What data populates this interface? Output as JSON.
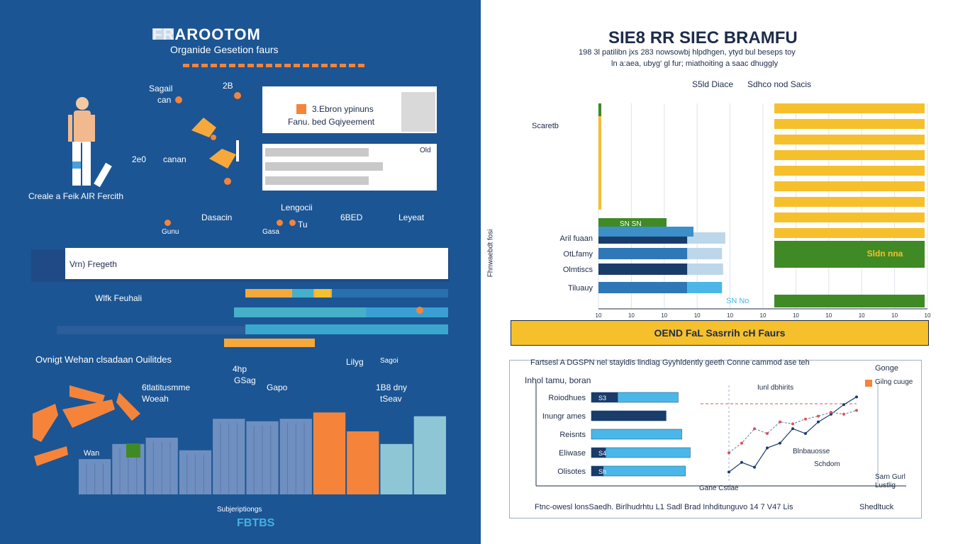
{
  "colors": {
    "left_bg": "#1b5594",
    "orange": "#f5843a",
    "yellow": "#f6c02c",
    "green": "#3f8a25",
    "light_blue": "#4bb7e8",
    "navy": "#1a3c6b",
    "teal": "#46b0c8",
    "grey_blue": "#6f8fc0"
  },
  "left": {
    "title": "FRAROOTOM",
    "subtitle": "Organide Gesetion faurs",
    "figure_label": "Creale a Feik AIR Fercith",
    "label_top_a": "Sagail",
    "label_top_a2": "can",
    "label_top_b": "2B",
    "label_mid_a": "2e0",
    "label_mid_b": "canan",
    "card1_line1": "3.Ebron ypinuns",
    "card1_line2": "Fanu. bed Gqiyeement",
    "card2_tag": "Old",
    "row_label_a": "Dasacin",
    "row_label_b": "Lengocii",
    "row_label_c": "6BED",
    "row_label_d": "Leyeat",
    "row_small_a": "Gunu",
    "row_small_b": "Gasa",
    "row_small_c": "Tu",
    "banner_text": "Vrn) Fregeth",
    "bar_label": "Wlfk Feuhali",
    "section_title": "Ovnigt Wehan clsadaan Ouilitdes",
    "note_a1": "4hp",
    "note_a2": "GSag",
    "note_b": "Gapo",
    "note_c1": "Lilyg",
    "note_c2": "Sagoi",
    "note_d1": "6tlatitusmme",
    "note_d2": "Woeah",
    "note_e1": "1B8 dny",
    "note_e2": "tSeav",
    "bottom_small": "Subjeriptiongs",
    "bottom_logo": "FBTBS",
    "fig_tag": "Wan"
  },
  "right": {
    "title": "SIE8 RR SIEC BRAMFU",
    "sub1": "198 3l patilibn jxs 283 nowsowbj hlpdhgen, ytyd bul beseps toy",
    "sub2": "ln a:aea, ubyg' gl fur; miathoiting a saac dhuggly",
    "legend_a": "S5ld Diace",
    "legend_b": "Sdhco nod Sacis",
    "y_label_top": "Scaretb",
    "y_axis_title": "Fhnwaebdt fosi",
    "bar_label_a": "SN SN",
    "bar_label_b": "Sldn nna",
    "bar_label_c": "SN No",
    "cat_labels": [
      "Aril fuaan",
      "OtLfamy",
      "Olmtiscs",
      "Tiluauy"
    ],
    "x_ticks": [
      "10",
      "10",
      "10",
      "10",
      "10",
      "10",
      "10",
      "10",
      "10",
      "10",
      "10"
    ],
    "banner": "OEND FaL Sasrrih cH Faurs",
    "chart2_title": "Fartsesl  A DGSPN nel stayidis lindiag Gyyhldently geeth  Conne cammod ase teh",
    "chart2_side_tag": "Gonge",
    "chart2_first_label": "Inhol tamu, boran",
    "chart2_cats": [
      "Roiodhues",
      "Inungr ames",
      "Reisnts",
      "Eliwase",
      "Olisotes"
    ],
    "chart2_bar_tags": [
      "S3",
      "",
      "",
      "S4",
      "Sh"
    ],
    "chart2_xlabel": "Ftnc-owesl lonsSaedh. Birlhudrhtu L1 Sadl  Brad Inhditunguvo  14 7  V47  Lis",
    "chart2_xlabel_right": "Shedltuck",
    "chart2_note": "Gane  Cstlae",
    "chart2_annot_a": "Iunl dbhirits",
    "chart2_annot_b": "Blnbauosse",
    "chart2_annot_c": "Schdom",
    "chart2_annot_d": "Gilng cuuge",
    "chart2_annot_e": "Sarn Gurl",
    "chart2_annot_f": "Lustlig"
  },
  "chart_data": [
    {
      "type": "bar",
      "subtype": "vertical",
      "title": "",
      "categories": [
        "b1",
        "b2",
        "b3",
        "b4",
        "b5",
        "b6",
        "b7",
        "b8",
        "b9",
        "b10",
        "b11"
      ],
      "values": [
        28,
        40,
        45,
        35,
        60,
        58,
        60,
        65,
        50,
        40,
        62
      ],
      "colors": [
        "grey_blue",
        "grey_blue",
        "grey_blue",
        "grey_blue",
        "grey_blue",
        "grey_blue",
        "grey_blue",
        "orange",
        "orange",
        "light",
        "light"
      ],
      "ylim": [
        0,
        100
      ]
    },
    {
      "type": "bar",
      "subtype": "horizontal-stacked",
      "title": "SIE8 RR SIEC BRAMFU",
      "categories": [
        "Aril fuaan",
        "OtLfamy",
        "Olmtiscs",
        "Tiluauy"
      ],
      "series": [
        {
          "name": "S5ld Diace",
          "values": [
            45,
            45,
            45,
            45
          ]
        },
        {
          "name": "Sdhco nod Sacis",
          "values": [
            35,
            32,
            33,
            32
          ]
        }
      ],
      "xlim": [
        0,
        100
      ],
      "legend": "top"
    },
    {
      "type": "bar",
      "subtype": "horizontal",
      "title": "OEND FaL Sasrrih cH Faurs",
      "categories": [
        "Roiodhues",
        "Inungr ames",
        "Reisnts",
        "Eliwase",
        "Olisotes"
      ],
      "values": [
        72,
        62,
        75,
        82,
        78
      ],
      "dark_segment": [
        22,
        62,
        0,
        12,
        10
      ],
      "xlim": [
        0,
        100
      ]
    },
    {
      "type": "line",
      "title": "",
      "x": [
        0,
        1,
        2,
        3,
        4,
        5,
        6,
        7,
        8,
        9,
        10
      ],
      "series": [
        {
          "values": [
            10,
            20,
            15,
            35,
            40,
            55,
            50,
            62,
            70,
            80,
            88
          ]
        },
        {
          "values": [
            30,
            40,
            55,
            50,
            62,
            60,
            65,
            68,
            72,
            70,
            74
          ]
        }
      ],
      "ylim": [
        0,
        100
      ]
    }
  ]
}
